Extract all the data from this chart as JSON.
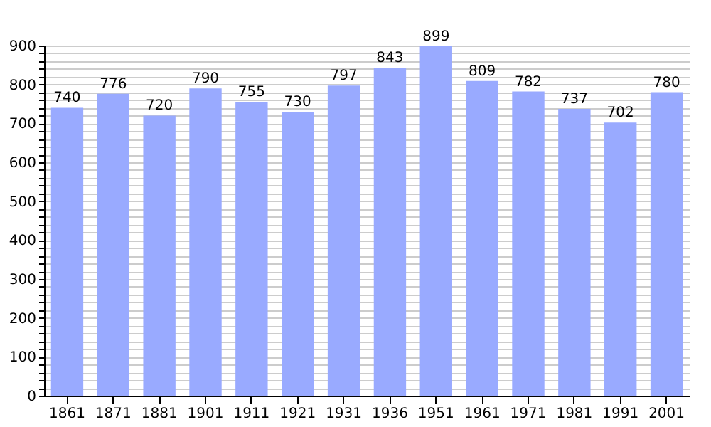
{
  "chart_data": {
    "type": "bar",
    "categories": [
      "1861",
      "1871",
      "1881",
      "1901",
      "1911",
      "1921",
      "1931",
      "1936",
      "1951",
      "1961",
      "1971",
      "1981",
      "1991",
      "2001"
    ],
    "values": [
      740,
      776,
      720,
      790,
      755,
      730,
      797,
      843,
      899,
      809,
      782,
      737,
      702,
      780
    ],
    "color": "#99aaff",
    "data_labels": true,
    "grid": true,
    "ylim": [
      0,
      900
    ],
    "yticks": [
      0,
      {
        "value": 20,
        "label": null
      },
      {
        "value": 40,
        "label": null
      },
      {
        "value": 60,
        "label": null
      },
      {
        "value": 80,
        "label": null
      },
      100,
      {
        "value": 120,
        "label": null
      },
      {
        "value": 140,
        "label": null
      },
      {
        "value": 160,
        "label": null
      },
      {
        "value": 180,
        "label": null
      },
      200,
      {
        "value": 220,
        "label": null
      },
      {
        "value": 240,
        "label": null
      },
      {
        "value": 260,
        "label": null
      },
      {
        "value": 280,
        "label": null
      },
      300,
      {
        "value": 320,
        "label": null
      },
      {
        "value": 340,
        "label": null
      },
      {
        "value": 360,
        "label": null
      },
      {
        "value": 380,
        "label": null
      },
      400,
      {
        "value": 420,
        "label": null
      },
      {
        "value": 440,
        "label": null
      },
      {
        "value": 460,
        "label": null
      },
      {
        "value": 480,
        "label": null
      },
      500,
      {
        "value": 520,
        "label": null
      },
      {
        "value": 540,
        "label": null
      },
      {
        "value": 560,
        "label": null
      },
      {
        "value": 580,
        "label": null
      },
      600,
      {
        "value": 620,
        "label": null
      },
      {
        "value": 640,
        "label": null
      },
      {
        "value": 660,
        "label": null
      },
      {
        "value": 680,
        "label": null
      },
      700,
      {
        "value": 720,
        "label": null
      },
      {
        "value": 740,
        "label": null
      },
      {
        "value": 760,
        "label": null
      },
      {
        "value": 780,
        "label": null
      },
      800,
      {
        "value": 820,
        "label": null
      },
      {
        "value": 840,
        "label": null
      },
      {
        "value": 860,
        "label": null
      },
      {
        "value": 880,
        "label": null
      },
      900
    ]
  }
}
